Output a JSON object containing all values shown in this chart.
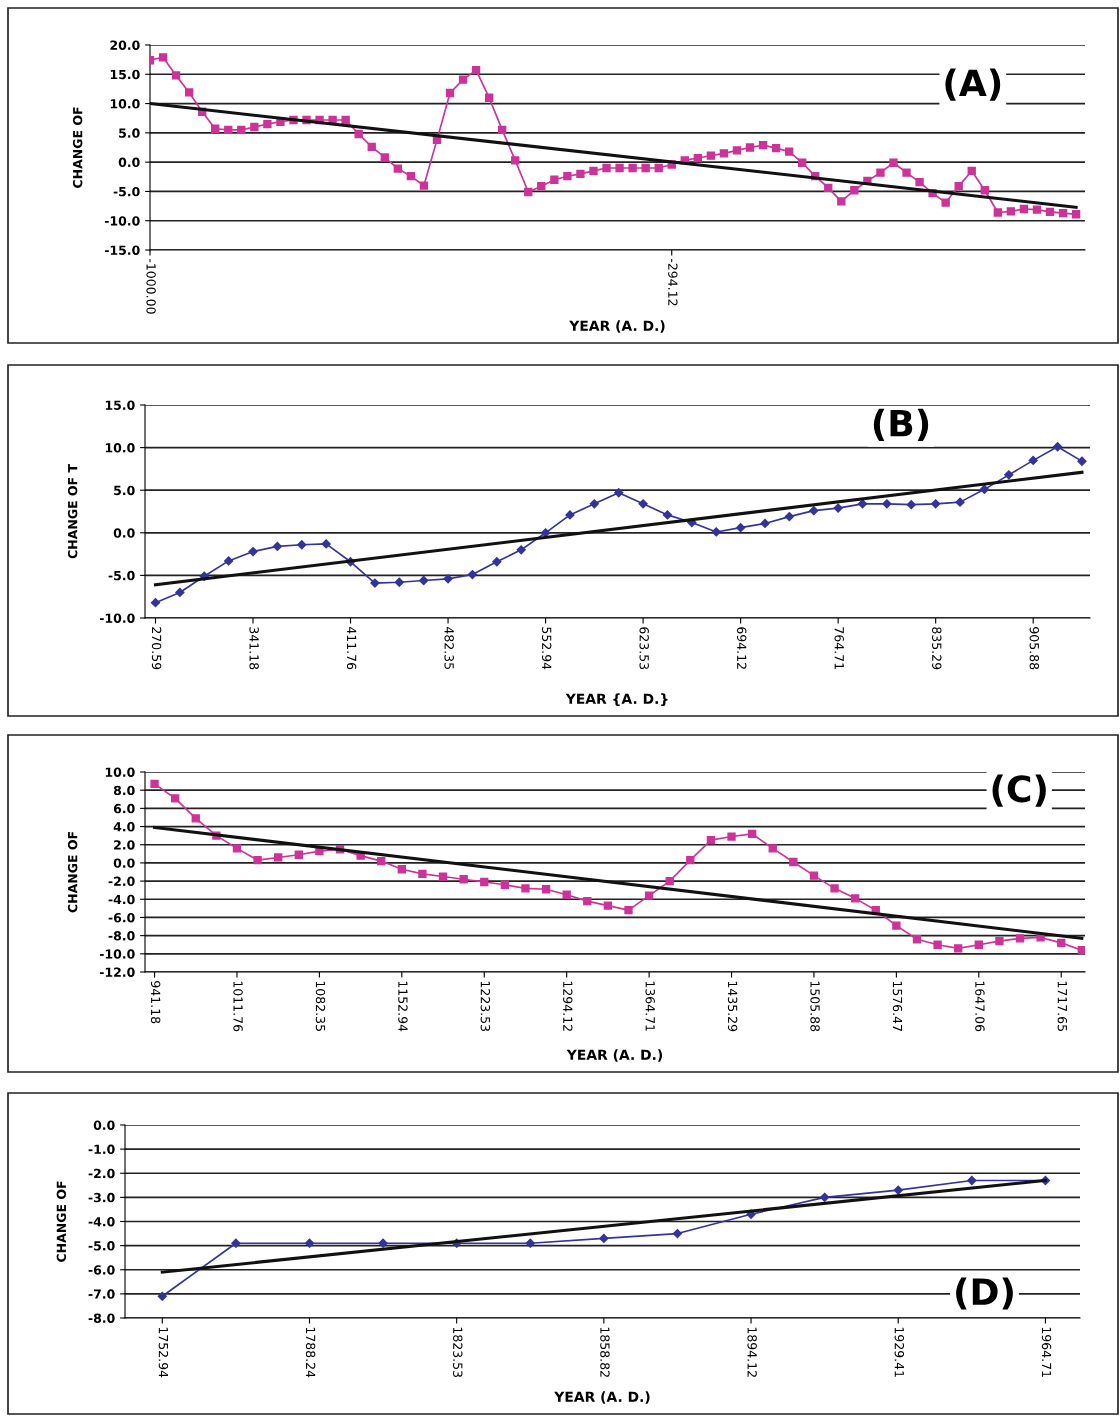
{
  "chart_data": [
    {
      "type": "line",
      "ylabel": "CHANGE OF",
      "xlabel": "YEAR (A. D.)",
      "annotations": [
        "(A)"
      ],
      "grid": "y",
      "xlim": [
        -1000,
        265
      ],
      "xticks": [
        {
          "value": -1000,
          "label": "-1000.00"
        },
        {
          "value": -294.12,
          "label": "-294.12"
        }
      ],
      "ylim": [
        -15,
        20
      ],
      "yticks": [
        {
          "value": -15,
          "label": "-15.0"
        },
        {
          "value": -10,
          "label": "-10.0"
        },
        {
          "value": -5,
          "label": "-5.0"
        },
        {
          "value": 0,
          "label": "0.0"
        },
        {
          "value": 5,
          "label": "5.0"
        },
        {
          "value": 10,
          "label": "10.0"
        },
        {
          "value": 15,
          "label": "15.0"
        },
        {
          "value": 20,
          "label": "20.0"
        }
      ],
      "series": [
        {
          "color": "#cc3399",
          "marker": "square",
          "x": [
            -1000,
            -982.35,
            -964.71,
            -947.06,
            -929.41,
            -911.76,
            -894.12,
            -876.47,
            -858.82,
            -841.18,
            -823.53,
            -805.88,
            -788.24,
            -770.59,
            -752.94,
            -735.29,
            -717.65,
            -700,
            -682.35,
            -664.71,
            -647.06,
            -629.41,
            -611.76,
            -594.12,
            -576.47,
            -558.82,
            -541.18,
            -523.53,
            -505.88,
            -488.24,
            -470.59,
            -452.94,
            -435.29,
            -417.65,
            -400,
            -382.35,
            -364.71,
            -347.06,
            -329.41,
            -311.76,
            -294.12,
            -276.47,
            -258.82,
            -241.18,
            -223.53,
            -205.88,
            -188.24,
            -170.59,
            -152.94,
            -135.29,
            -117.65,
            -100,
            -82.35,
            -64.71,
            -47.06,
            -29.41,
            -11.76,
            5.88,
            23.53,
            41.18,
            58.82,
            76.47,
            94.12,
            111.76,
            129.41,
            147.06,
            164.71,
            182.35,
            200,
            217.65,
            235.29,
            252.94
          ],
          "values": [
            17.4,
            17.9,
            14.8,
            11.9,
            8.6,
            5.7,
            5.5,
            5.5,
            6.0,
            6.5,
            6.9,
            7.2,
            7.2,
            7.2,
            7.2,
            7.2,
            4.8,
            2.6,
            0.8,
            -1.1,
            -2.4,
            -4.0,
            3.8,
            11.8,
            14.1,
            15.7,
            11.0,
            5.5,
            0.3,
            -5.1,
            -4.1,
            -3.0,
            -2.4,
            -2.0,
            -1.5,
            -1.0,
            -1.0,
            -1.0,
            -1.0,
            -1.0,
            -0.4,
            0.3,
            0.7,
            1.1,
            1.5,
            2.0,
            2.5,
            2.9,
            2.4,
            1.8,
            -0.1,
            -2.4,
            -4.4,
            -6.7,
            -4.8,
            -3.2,
            -1.8,
            -0.1,
            -1.8,
            -3.4,
            -5.3,
            -6.9,
            -4.1,
            -1.5,
            -4.8,
            -8.6,
            -8.4,
            -8.0,
            -8.1,
            -8.5,
            -8.7,
            -8.9
          ]
        },
        {
          "color": "#111111",
          "marker": "none",
          "x": [
            -1000,
            252.94
          ],
          "values": [
            10.0,
            -7.7
          ]
        }
      ]
    },
    {
      "type": "line",
      "ylabel": "CHANGE OF T",
      "xlabel": "YEAR {A. D.}",
      "annotations": [
        "(B)"
      ],
      "grid": "y",
      "xlim": [
        263,
        947
      ],
      "xticks": [
        {
          "value": 270.59,
          "label": "270.59"
        },
        {
          "value": 341.18,
          "label": "341.18"
        },
        {
          "value": 411.76,
          "label": "411.76"
        },
        {
          "value": 482.35,
          "label": "482.35"
        },
        {
          "value": 552.94,
          "label": "552.94"
        },
        {
          "value": 623.53,
          "label": "623.53"
        },
        {
          "value": 694.12,
          "label": "694.12"
        },
        {
          "value": 764.71,
          "label": "764.71"
        },
        {
          "value": 835.29,
          "label": "835.29"
        },
        {
          "value": 905.88,
          "label": "905.88"
        }
      ],
      "ylim": [
        -10,
        15
      ],
      "yticks": [
        {
          "value": -10,
          "label": "-10.0"
        },
        {
          "value": -5,
          "label": "-5.0"
        },
        {
          "value": 0,
          "label": "0.0"
        },
        {
          "value": 5,
          "label": "5.0"
        },
        {
          "value": 10,
          "label": "10.0"
        },
        {
          "value": 15,
          "label": "15.0"
        }
      ],
      "series": [
        {
          "color": "#333399",
          "marker": "diamond",
          "x": [
            270.59,
            288.24,
            305.88,
            323.53,
            341.18,
            358.82,
            376.47,
            394.12,
            411.76,
            429.41,
            447.06,
            464.71,
            482.35,
            500,
            517.65,
            535.29,
            552.94,
            570.59,
            588.24,
            605.88,
            623.53,
            641.18,
            658.82,
            676.47,
            694.12,
            711.76,
            729.41,
            747.06,
            764.71,
            782.35,
            800,
            817.65,
            835.29,
            852.94,
            870.59,
            888.24,
            905.88,
            923.53,
            941.18
          ],
          "values": [
            -8.2,
            -7.0,
            -5.1,
            -3.3,
            -2.2,
            -1.6,
            -1.4,
            -1.3,
            -3.4,
            -5.9,
            -5.8,
            -5.6,
            -5.4,
            -4.9,
            -3.4,
            -2.0,
            0.0,
            2.1,
            3.4,
            4.7,
            3.4,
            2.1,
            1.2,
            0.1,
            0.6,
            1.1,
            1.9,
            2.6,
            2.9,
            3.4,
            3.4,
            3.3,
            3.4,
            3.6,
            5.1,
            6.8,
            8.5,
            10.1,
            8.4
          ]
        },
        {
          "color": "#111111",
          "marker": "none",
          "x": [
            270.59,
            941.18
          ],
          "values": [
            -6.1,
            7.1
          ]
        }
      ]
    },
    {
      "type": "line",
      "ylabel": "CHANGE OF",
      "xlabel": "YEAR (A. D.)",
      "annotations": [
        "(C)"
      ],
      "grid": "y",
      "xlim": [
        933,
        1738
      ],
      "xticks": [
        {
          "value": 941.18,
          "label": "941.18"
        },
        {
          "value": 1011.76,
          "label": "1011.76"
        },
        {
          "value": 1082.35,
          "label": "1082.35"
        },
        {
          "value": 1152.94,
          "label": "1152.94"
        },
        {
          "value": 1223.53,
          "label": "1223.53"
        },
        {
          "value": 1294.12,
          "label": "1294.12"
        },
        {
          "value": 1364.71,
          "label": "1364.71"
        },
        {
          "value": 1435.29,
          "label": "1435.29"
        },
        {
          "value": 1505.88,
          "label": "1505.88"
        },
        {
          "value": 1576.47,
          "label": "1576.47"
        },
        {
          "value": 1647.06,
          "label": "1647.06"
        },
        {
          "value": 1717.65,
          "label": "1717.65"
        }
      ],
      "ylim": [
        -12,
        10
      ],
      "yticks": [
        {
          "value": -12,
          "label": "-12.0"
        },
        {
          "value": -10,
          "label": "-10.0"
        },
        {
          "value": -8,
          "label": "-8.0"
        },
        {
          "value": -6,
          "label": "-6.0"
        },
        {
          "value": -4,
          "label": "-4.0"
        },
        {
          "value": -2,
          "label": "-2.0"
        },
        {
          "value": 0,
          "label": "0.0"
        },
        {
          "value": 2,
          "label": "2.0"
        },
        {
          "value": 4,
          "label": "4.0"
        },
        {
          "value": 6,
          "label": "6.0"
        },
        {
          "value": 8,
          "label": "8.0"
        },
        {
          "value": 10,
          "label": "10.0"
        }
      ],
      "series": [
        {
          "color": "#cc3399",
          "marker": "square",
          "x": [
            941.18,
            958.82,
            976.47,
            994.12,
            1011.76,
            1029.41,
            1047.06,
            1064.71,
            1082.35,
            1100,
            1117.65,
            1135.29,
            1152.94,
            1170.59,
            1188.24,
            1205.88,
            1223.53,
            1241.18,
            1258.82,
            1276.47,
            1294.12,
            1311.76,
            1329.41,
            1347.06,
            1364.71,
            1382.35,
            1400,
            1417.65,
            1435.29,
            1452.94,
            1470.59,
            1488.24,
            1505.88,
            1523.53,
            1541.18,
            1558.82,
            1576.47,
            1594.12,
            1611.76,
            1629.41,
            1647.06,
            1664.71,
            1682.35,
            1700,
            1717.65,
            1735.29
          ],
          "values": [
            8.7,
            7.1,
            4.9,
            3.0,
            1.6,
            0.3,
            0.6,
            0.9,
            1.3,
            1.5,
            0.8,
            0.2,
            -0.7,
            -1.2,
            -1.5,
            -1.8,
            -2.1,
            -2.4,
            -2.8,
            -2.9,
            -3.5,
            -4.2,
            -4.7,
            -5.2,
            -3.6,
            -2.0,
            0.3,
            2.5,
            2.9,
            3.2,
            1.6,
            0.1,
            -1.4,
            -2.8,
            -3.9,
            -5.2,
            -6.9,
            -8.4,
            -9.0,
            -9.4,
            -9.0,
            -8.6,
            -8.3,
            -8.2,
            -8.8,
            -9.6
          ]
        },
        {
          "color": "#111111",
          "marker": "none",
          "x": [
            941.18,
            1735.29
          ],
          "values": [
            3.9,
            -8.3
          ]
        }
      ]
    },
    {
      "type": "line",
      "ylabel": "CHANGE OF",
      "xlabel": "YEAR (A. D.)",
      "annotations": [
        "(D)"
      ],
      "grid": "y",
      "xlim": [
        1744,
        1973
      ],
      "xticks": [
        {
          "value": 1752.94,
          "label": "1752.94"
        },
        {
          "value": 1788.24,
          "label": "1788.24"
        },
        {
          "value": 1823.53,
          "label": "1823.53"
        },
        {
          "value": 1858.82,
          "label": "1858.82"
        },
        {
          "value": 1894.12,
          "label": "1894.12"
        },
        {
          "value": 1929.41,
          "label": "1929.41"
        },
        {
          "value": 1964.71,
          "label": "1964.71"
        }
      ],
      "ylim": [
        -8,
        0
      ],
      "yticks": [
        {
          "value": -8,
          "label": "-8.0"
        },
        {
          "value": -7,
          "label": "-7.0"
        },
        {
          "value": -6,
          "label": "-6.0"
        },
        {
          "value": -5,
          "label": "-5.0"
        },
        {
          "value": -4,
          "label": "-4.0"
        },
        {
          "value": -3,
          "label": "-3.0"
        },
        {
          "value": -2,
          "label": "-2.0"
        },
        {
          "value": -1,
          "label": "-1.0"
        },
        {
          "value": 0,
          "label": "0.0"
        }
      ],
      "series": [
        {
          "color": "#333399",
          "marker": "diamond",
          "x": [
            1752.94,
            1770.59,
            1788.24,
            1805.88,
            1823.53,
            1841.18,
            1858.82,
            1876.47,
            1894.12,
            1911.76,
            1929.41,
            1947.06,
            1964.71
          ],
          "values": [
            -7.1,
            -4.9,
            -4.9,
            -4.9,
            -4.9,
            -4.9,
            -4.7,
            -4.5,
            -3.7,
            -3.0,
            -2.7,
            -2.3,
            -2.3
          ]
        },
        {
          "color": "#111111",
          "marker": "none",
          "x": [
            1752.94,
            1964.71
          ],
          "values": [
            -6.1,
            -2.3
          ]
        }
      ]
    }
  ]
}
